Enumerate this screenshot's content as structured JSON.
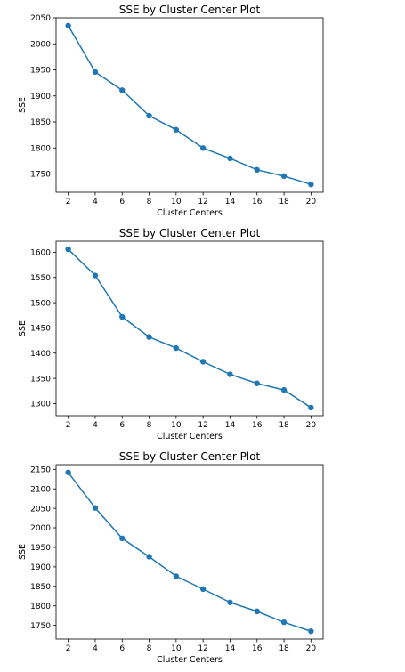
{
  "colors": {
    "series": "#1f77b4",
    "axes": "#000000",
    "background": "#ffffff"
  },
  "chart_data": [
    {
      "type": "line",
      "title": "SSE by Cluster Center Plot",
      "xlabel": "Cluster Centers",
      "ylabel": "SSE",
      "x": [
        2,
        4,
        6,
        8,
        10,
        12,
        14,
        16,
        18,
        20
      ],
      "values": [
        2035,
        1946,
        1911,
        1862,
        1835,
        1800,
        1780,
        1758,
        1746,
        1730
      ],
      "xticks": [
        "2",
        "4",
        "6",
        "8",
        "10",
        "12",
        "14",
        "16",
        "18",
        "20"
      ],
      "yticks": [
        "1750",
        "1800",
        "1850",
        "1900",
        "1950",
        "2000",
        "2050"
      ],
      "xlim": [
        1.1,
        20.9
      ],
      "ylim": [
        1715,
        2050
      ],
      "grid": false,
      "marker": "circle"
    },
    {
      "type": "line",
      "title": "SSE by Cluster Center Plot",
      "xlabel": "Cluster Centers",
      "ylabel": "SSE",
      "x": [
        2,
        4,
        6,
        8,
        10,
        12,
        14,
        16,
        18,
        20
      ],
      "values": [
        1606,
        1554,
        1472,
        1432,
        1410,
        1383,
        1358,
        1340,
        1327,
        1292
      ],
      "xticks": [
        "2",
        "4",
        "6",
        "8",
        "10",
        "12",
        "14",
        "16",
        "18",
        "20"
      ],
      "yticks": [
        "1300",
        "1350",
        "1400",
        "1450",
        "1500",
        "1550",
        "1600"
      ],
      "xlim": [
        1.1,
        20.9
      ],
      "ylim": [
        1276,
        1622
      ],
      "grid": false,
      "marker": "circle"
    },
    {
      "type": "line",
      "title": "SSE by Cluster Center Plot",
      "xlabel": "Cluster Centers",
      "ylabel": "SSE",
      "x": [
        2,
        4,
        6,
        8,
        10,
        12,
        14,
        16,
        18,
        20
      ],
      "values": [
        2142,
        2051,
        1973,
        1926,
        1876,
        1843,
        1809,
        1786,
        1758,
        1735
      ],
      "xticks": [
        "2",
        "4",
        "6",
        "8",
        "10",
        "12",
        "14",
        "16",
        "18",
        "20"
      ],
      "yticks": [
        "1750",
        "1800",
        "1850",
        "1900",
        "1950",
        "2000",
        "2050",
        "2100",
        "2150"
      ],
      "xlim": [
        1.1,
        20.9
      ],
      "ylim": [
        1715,
        2162
      ],
      "grid": false,
      "marker": "circle"
    }
  ]
}
